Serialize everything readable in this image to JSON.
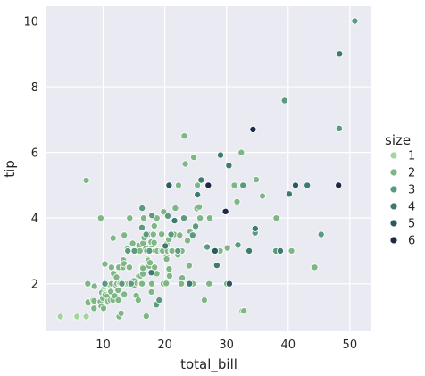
{
  "chart_data": {
    "type": "scatter",
    "xlabel": "total_bill",
    "ylabel": "tip",
    "xlim": [
      0.8,
      53.5
    ],
    "ylim": [
      0.55,
      10.45
    ],
    "xticks": [
      10,
      20,
      30,
      40,
      50
    ],
    "yticks": [
      2,
      4,
      6,
      8,
      10
    ],
    "grid": true,
    "legend": {
      "title": "size",
      "placement": "right",
      "entries": [
        {
          "label": "1",
          "color": "#a7d3a0"
        },
        {
          "label": "2",
          "color": "#7fb685"
        },
        {
          "label": "3",
          "color": "#5a9a7e"
        },
        {
          "label": "4",
          "color": "#3d7a72"
        },
        {
          "label": "5",
          "color": "#2b5a63"
        },
        {
          "label": "6",
          "color": "#1e2a45"
        }
      ]
    },
    "series": [
      {
        "name": "1",
        "color": "#a7d3a0",
        "points": [
          [
            3.07,
            1.0
          ],
          [
            5.75,
            1.0
          ],
          [
            7.25,
            1.0
          ],
          [
            10.07,
            1.83
          ]
        ]
      },
      {
        "name": "2",
        "color": "#7fb685",
        "points": [
          [
            7.25,
            5.15
          ],
          [
            7.51,
            2.0
          ],
          [
            7.56,
            1.44
          ],
          [
            8.35,
            1.5
          ],
          [
            8.51,
            1.25
          ],
          [
            8.52,
            1.48
          ],
          [
            8.58,
            1.92
          ],
          [
            9.55,
            1.45
          ],
          [
            9.6,
            4.0
          ],
          [
            9.68,
            1.32
          ],
          [
            9.78,
            1.73
          ],
          [
            9.94,
            1.56
          ],
          [
            10.07,
            1.25
          ],
          [
            10.27,
            1.71
          ],
          [
            10.29,
            2.6
          ],
          [
            10.33,
            1.67
          ],
          [
            10.34,
            1.66
          ],
          [
            10.34,
            2.0
          ],
          [
            10.59,
            1.61
          ],
          [
            10.63,
            2.0
          ],
          [
            10.65,
            1.5
          ],
          [
            10.77,
            1.47
          ],
          [
            11.02,
            1.98
          ],
          [
            11.17,
            1.5
          ],
          [
            11.24,
            1.76
          ],
          [
            11.35,
            2.5
          ],
          [
            11.38,
            2.0
          ],
          [
            11.59,
            1.5
          ],
          [
            11.61,
            3.39
          ],
          [
            11.69,
            2.31
          ],
          [
            11.87,
            1.63
          ],
          [
            12.02,
            1.97
          ],
          [
            12.16,
            2.2
          ],
          [
            12.26,
            2.0
          ],
          [
            12.43,
            1.8
          ],
          [
            12.46,
            1.5
          ],
          [
            12.48,
            2.52
          ],
          [
            12.54,
            2.5
          ],
          [
            12.6,
            1.0
          ],
          [
            12.69,
            2.0
          ],
          [
            12.74,
            2.01
          ],
          [
            12.9,
            1.1
          ],
          [
            13.0,
            2.0
          ],
          [
            13.03,
            2.0
          ],
          [
            13.13,
            2.0
          ],
          [
            13.27,
            2.5
          ],
          [
            13.28,
            2.72
          ],
          [
            13.37,
            2.0
          ],
          [
            13.39,
            2.61
          ],
          [
            13.42,
            1.68
          ],
          [
            13.42,
            3.48
          ],
          [
            13.81,
            2.0
          ],
          [
            13.94,
            3.06
          ],
          [
            14.07,
            2.5
          ],
          [
            14.15,
            2.0
          ],
          [
            14.26,
            2.5
          ],
          [
            14.31,
            4.0
          ],
          [
            14.48,
            2.0
          ],
          [
            14.52,
            2.0
          ],
          [
            14.78,
            3.23
          ],
          [
            15.01,
            2.09
          ],
          [
            15.04,
            1.96
          ],
          [
            15.36,
            1.64
          ],
          [
            15.38,
            3.0
          ],
          [
            15.48,
            2.02
          ],
          [
            15.69,
            1.5
          ],
          [
            15.77,
            2.23
          ],
          [
            15.81,
            3.16
          ],
          [
            15.95,
            2.0
          ],
          [
            15.98,
            3.0
          ],
          [
            16.0,
            2.0
          ],
          [
            16.04,
            2.24
          ],
          [
            16.21,
            2.0
          ],
          [
            16.27,
            2.5
          ],
          [
            16.31,
            2.0
          ],
          [
            16.4,
            2.5
          ],
          [
            16.43,
            2.3
          ],
          [
            16.45,
            2.47
          ],
          [
            16.47,
            3.23
          ],
          [
            16.58,
            4.0
          ],
          [
            16.66,
            3.4
          ],
          [
            16.93,
            3.07
          ],
          [
            16.99,
            1.01
          ],
          [
            17.07,
            3.0
          ],
          [
            17.26,
            2.74
          ],
          [
            17.29,
            2.71
          ],
          [
            17.31,
            3.5
          ],
          [
            17.46,
            2.54
          ],
          [
            17.51,
            3.0
          ],
          [
            17.59,
            2.64
          ],
          [
            17.78,
            3.27
          ],
          [
            17.82,
            1.75
          ],
          [
            17.89,
            2.0
          ],
          [
            17.92,
            3.08
          ],
          [
            18.04,
            3.0
          ],
          [
            18.15,
            3.5
          ],
          [
            18.24,
            3.76
          ],
          [
            18.26,
            3.25
          ],
          [
            18.29,
            3.0
          ],
          [
            18.29,
            3.76
          ],
          [
            18.35,
            2.5
          ],
          [
            18.43,
            3.0
          ],
          [
            18.69,
            2.31
          ],
          [
            18.71,
            4.0
          ],
          [
            18.78,
            3.0
          ],
          [
            19.44,
            3.0
          ],
          [
            19.49,
            3.51
          ],
          [
            19.65,
            3.0
          ],
          [
            19.77,
            2.0
          ],
          [
            19.81,
            4.19
          ],
          [
            20.08,
            3.15
          ],
          [
            20.23,
            2.01
          ],
          [
            20.27,
            2.83
          ],
          [
            20.29,
            2.75
          ],
          [
            20.29,
            3.21
          ],
          [
            20.45,
            3.0
          ],
          [
            20.49,
            4.06
          ],
          [
            20.65,
            3.35
          ],
          [
            20.69,
            2.45
          ],
          [
            20.76,
            2.24
          ],
          [
            20.9,
            3.5
          ],
          [
            21.01,
            3.0
          ],
          [
            21.16,
            3.0
          ],
          [
            21.5,
            3.5
          ],
          [
            21.58,
            3.92
          ],
          [
            21.7,
            4.3
          ],
          [
            22.12,
            2.88
          ],
          [
            22.23,
            5.0
          ],
          [
            22.42,
            3.48
          ],
          [
            22.67,
            2.0
          ],
          [
            22.76,
            3.0
          ],
          [
            22.82,
            2.18
          ],
          [
            23.1,
            4.0
          ],
          [
            23.17,
            6.5
          ],
          [
            23.33,
            5.65
          ],
          [
            23.68,
            3.31
          ],
          [
            23.95,
            2.55
          ],
          [
            24.06,
            3.6
          ],
          [
            24.55,
            2.0
          ],
          [
            24.71,
            5.85
          ],
          [
            25.21,
            4.29
          ],
          [
            25.28,
            5.0
          ],
          [
            25.29,
            4.71
          ],
          [
            25.56,
            4.34
          ],
          [
            25.71,
            4.0
          ],
          [
            26.41,
            1.5
          ],
          [
            26.86,
            3.14
          ],
          [
            26.88,
            3.12
          ],
          [
            27.18,
            2.0
          ],
          [
            27.2,
            4.0
          ],
          [
            27.28,
            4.0
          ],
          [
            28.97,
            3.0
          ],
          [
            30.06,
            2.0
          ],
          [
            30.14,
            3.09
          ],
          [
            31.27,
            5.0
          ],
          [
            31.71,
            4.5
          ],
          [
            32.4,
            6.0
          ],
          [
            32.56,
            1.17
          ],
          [
            32.83,
            1.17
          ],
          [
            34.3,
            6.7
          ],
          [
            34.83,
            5.17
          ],
          [
            35.83,
            4.67
          ],
          [
            38.07,
            4.0
          ],
          [
            40.55,
            3.0
          ],
          [
            44.3,
            2.5
          ]
        ]
      },
      {
        "name": "3",
        "color": "#5a9a7e",
        "points": [
          [
            10.29,
            2.0
          ],
          [
            13.03,
            2.0
          ],
          [
            14.0,
            3.0
          ],
          [
            14.52,
            2.0
          ],
          [
            15.06,
            3.0
          ],
          [
            16.29,
            3.71
          ],
          [
            16.32,
            4.3
          ],
          [
            16.97,
            3.5
          ],
          [
            17.51,
            3.0
          ],
          [
            17.92,
            4.08
          ],
          [
            18.64,
            1.36
          ],
          [
            19.08,
            1.5
          ],
          [
            20.49,
            4.06
          ],
          [
            21.01,
            3.5
          ],
          [
            21.58,
            3.92
          ],
          [
            22.12,
            3.0
          ],
          [
            23.1,
            4.0
          ],
          [
            24.52,
            3.48
          ],
          [
            25.0,
            3.75
          ],
          [
            26.88,
            3.12
          ],
          [
            28.15,
            3.0
          ],
          [
            29.8,
            4.2
          ],
          [
            31.85,
            3.18
          ],
          [
            32.68,
            5.0
          ],
          [
            34.63,
            3.55
          ],
          [
            38.01,
            3.0
          ],
          [
            39.42,
            7.58
          ],
          [
            45.35,
            3.5
          ],
          [
            48.27,
            6.73
          ],
          [
            50.81,
            10.0
          ]
        ]
      },
      {
        "name": "4",
        "color": "#3d7a72",
        "points": [
          [
            17.81,
            2.34
          ],
          [
            20.08,
            3.15
          ],
          [
            21.58,
            3.92
          ],
          [
            24.01,
            2.0
          ],
          [
            25.29,
            4.71
          ],
          [
            25.89,
            5.16
          ],
          [
            27.05,
            5.0
          ],
          [
            28.44,
            2.56
          ],
          [
            29.03,
            5.92
          ],
          [
            30.4,
            5.6
          ],
          [
            33.68,
            3.0
          ],
          [
            34.65,
            3.68
          ],
          [
            38.73,
            3.0
          ],
          [
            40.17,
            4.73
          ],
          [
            43.11,
            5.0
          ],
          [
            48.33,
            9.0
          ]
        ]
      },
      {
        "name": "5",
        "color": "#2b5a63",
        "points": [
          [
            20.69,
            5.0
          ],
          [
            28.15,
            3.0
          ],
          [
            30.46,
            2.0
          ],
          [
            41.19,
            5.0
          ]
        ]
      },
      {
        "name": "6",
        "color": "#1e2a45",
        "points": [
          [
            27.05,
            5.0
          ],
          [
            29.85,
            4.2
          ],
          [
            34.3,
            6.7
          ],
          [
            48.17,
            5.0
          ]
        ]
      }
    ]
  }
}
